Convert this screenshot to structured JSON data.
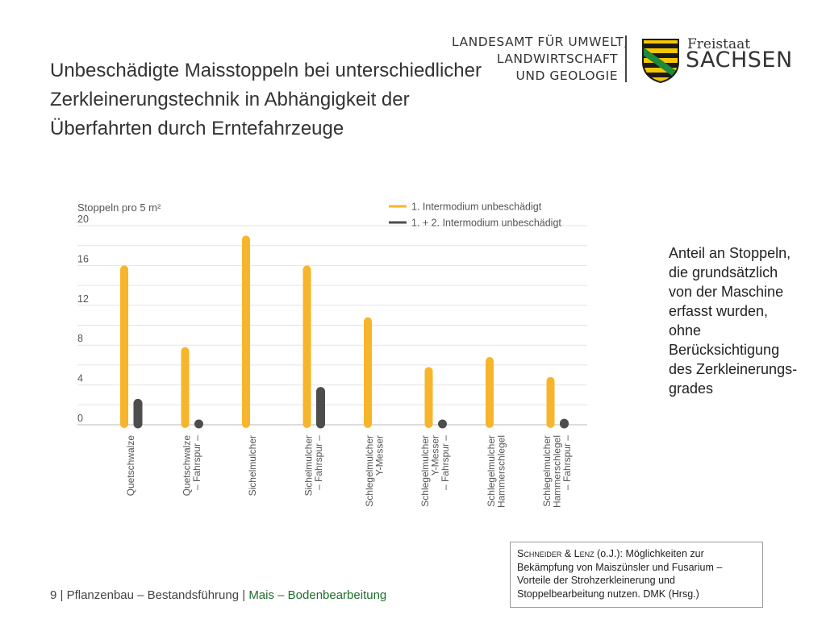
{
  "header": {
    "agency_lines": [
      "LANDESAMT FÜR UMWELT,",
      "LANDWIRTSCHAFT",
      "UND GEOLOGIE"
    ],
    "state_small": "Freistaat",
    "state_big": "SACHSEN",
    "colors": {
      "green": "#1e8a3a",
      "yellow": "#f7c600",
      "black": "#1a1a1a"
    }
  },
  "title": "Unbeschädigte Maisstoppeln bei unterschiedlicher Zerkleinerungstechnik in Abhängigkeit der Überfahrten durch Erntefahrzeuge",
  "chart_data": {
    "type": "bar",
    "ylabel": "Stoppeln pro 5 m²",
    "ylim": [
      0,
      20
    ],
    "yticks": [
      0,
      4,
      8,
      12,
      16,
      20
    ],
    "grid": true,
    "legend_position": "top-right",
    "categories": [
      [
        "Quetschwalze"
      ],
      [
        "Quetschwalze",
        "– Fahrspur –"
      ],
      [
        "Sichelmulcher"
      ],
      [
        "Sichelmulcher",
        "– Fahrspur –"
      ],
      [
        "Schlegelmulcher",
        "Y-Messer"
      ],
      [
        "Schlegelmulcher",
        "Y-Messer",
        "– Fahrspur –"
      ],
      [
        "Schlegelmulcher",
        "Hammerschlegel"
      ],
      [
        "Schlegelmulcher",
        "Hammerschlegel",
        "– Fahrspur –"
      ]
    ],
    "series": [
      {
        "name": "1. Intermodium unbeschädigt",
        "color": "#f7b52c",
        "values": [
          16,
          7.8,
          19,
          16,
          10.8,
          5.8,
          6.8,
          4.8
        ]
      },
      {
        "name": "1. + 2. Intermodium unbeschädigt",
        "color": "#4d4d4d",
        "values": [
          2.6,
          0.5,
          null,
          3.8,
          null,
          0.5,
          null,
          0.6
        ]
      }
    ]
  },
  "note": "Anteil an Stoppeln, die grundsätzlich von der Maschine erfasst wurden, ohne Berücksichtigung des Zerkleinerungs-grades",
  "source": {
    "authors": "Schneider & Lenz",
    "text": " (o.J.): Möglichkeiten zur Bekämpfung von Maiszünsler und Fusarium – Vorteile der Strohzerkleinerung und Stoppelbearbeitung nutzen. DMK (Hrsg.)"
  },
  "footer": {
    "prefix": "9 | Pflanzenbau – Bestandsführung | ",
    "highlight": "Mais – Bodenbearbeitung"
  }
}
